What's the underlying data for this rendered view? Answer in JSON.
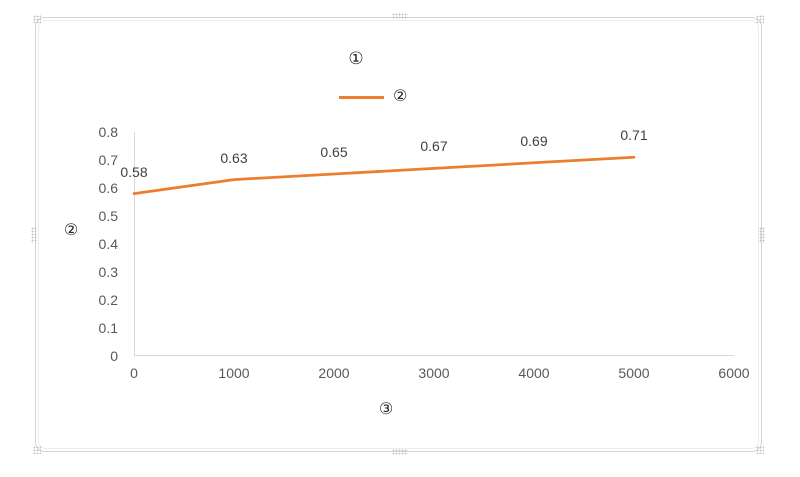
{
  "chart_data": {
    "type": "line",
    "title": "①",
    "xlabel": "③",
    "ylabel": "②",
    "legend_position": "top-center",
    "x": [
      0,
      1000,
      2000,
      3000,
      4000,
      5000
    ],
    "series": [
      {
        "name": "②",
        "color": "#ED7D31",
        "values": [
          0.58,
          0.63,
          0.65,
          0.67,
          0.69,
          0.71
        ]
      }
    ],
    "data_labels": [
      "0.58",
      "0.63",
      "0.65",
      "0.67",
      "0.69",
      "0.71"
    ],
    "xlim": [
      0,
      6000
    ],
    "ylim": [
      0,
      0.8
    ],
    "x_tick_labels": [
      "0",
      "1000",
      "2000",
      "3000",
      "4000",
      "5000",
      "6000"
    ],
    "y_tick_labels": [
      "0",
      "0.1",
      "0.2",
      "0.3",
      "0.4",
      "0.5",
      "0.6",
      "0.7",
      "0.8"
    ],
    "grid": false,
    "axis_color": "#d9d9d9",
    "tick_label_color": "#595959",
    "data_label_color": "#404040"
  }
}
